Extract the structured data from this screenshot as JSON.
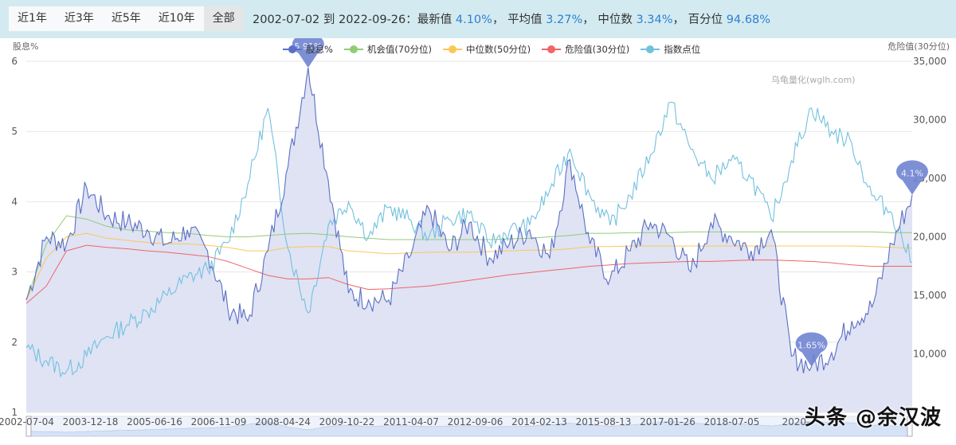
{
  "toolbar": {
    "ranges": [
      {
        "label": "近1年",
        "active": false
      },
      {
        "label": "近3年",
        "active": false
      },
      {
        "label": "近5年",
        "active": false
      },
      {
        "label": "近10年",
        "active": false
      },
      {
        "label": "全部",
        "active": true
      }
    ]
  },
  "summary": {
    "date_range": "2002-07-02 到 2022-09-26：",
    "latest_label": "最新值",
    "latest_value": "4.10%",
    "sep1": "，",
    "mean_label": "平均值",
    "mean_value": "3.27%",
    "sep2": "，",
    "median_label": "中位数",
    "median_value": "3.34%",
    "sep3": "，",
    "pct_label": "百分位",
    "pct_value": "94.68%"
  },
  "colors": {
    "accent": "#2e7fd4",
    "yield": "#5b6fc4",
    "yield_fill": "#dde1f3",
    "opportunity": "#91cc75",
    "median": "#fac858",
    "danger": "#ee6666",
    "index": "#73c0de",
    "marker": "#6f84d2"
  },
  "chart": {
    "left_axis_name": "股息%",
    "right_axis_name": "危险值(30分位)",
    "watermark": "乌龟量化(wglh.com)",
    "credit": "头条 @余汉波"
  },
  "chart_data": {
    "type": "line",
    "title": "",
    "xlabel": "",
    "ylabel": "股息%",
    "y2label": "指数点位",
    "ylim": [
      1,
      6
    ],
    "y2lim": [
      5000,
      35000
    ],
    "y_ticks": [
      1,
      2,
      3,
      4,
      5,
      6
    ],
    "y2_ticks": [
      "10,000",
      "15,000",
      "20,000",
      "25,000",
      "30,000",
      "35,000"
    ],
    "x_tick_labels": [
      "2002-07-04",
      "2003-12-18",
      "2005-06-16",
      "2006-11-09",
      "2008-04-24",
      "2009-10-22",
      "2011-04-07",
      "2012-09-06",
      "2014-02-13",
      "2015-08-13",
      "2017-01-26",
      "2018-07-05",
      "2020-"
    ],
    "grid": true,
    "legend_position": "top",
    "legend": [
      "股息%",
      "机会值(70分位)",
      "中位数(50分位)",
      "危险值(30分位)",
      "指数点位"
    ],
    "x": [
      "2002-07",
      "2003-01",
      "2003-07",
      "2004-01",
      "2004-07",
      "2005-01",
      "2005-07",
      "2006-01",
      "2006-07",
      "2007-01",
      "2007-07",
      "2008-01",
      "2008-07",
      "2008-10",
      "2009-01",
      "2009-07",
      "2010-01",
      "2010-07",
      "2011-01",
      "2011-07",
      "2012-01",
      "2012-07",
      "2013-01",
      "2013-07",
      "2014-01",
      "2014-07",
      "2015-01",
      "2015-07",
      "2016-01",
      "2016-07",
      "2017-01",
      "2017-07",
      "2018-01",
      "2018-07",
      "2019-01",
      "2019-07",
      "2020-01",
      "2020-04",
      "2020-07",
      "2021-01",
      "2021-07",
      "2022-01",
      "2022-04",
      "2022-07",
      "2022-09"
    ],
    "series": [
      {
        "name": "股息%",
        "axis": "left",
        "values": [
          2.6,
          3.5,
          3.4,
          4.2,
          3.8,
          3.7,
          3.6,
          3.4,
          3.6,
          3.3,
          2.5,
          2.3,
          3.3,
          4.5,
          5.91,
          4.3,
          2.7,
          2.6,
          2.6,
          3.2,
          3.9,
          3.3,
          3.7,
          3.2,
          3.4,
          3.6,
          3.2,
          4.6,
          3.4,
          2.9,
          3.3,
          3.7,
          3.5,
          3.0,
          3.7,
          3.5,
          3.3,
          3.6,
          1.8,
          1.65,
          1.85,
          2.3,
          2.5,
          3.4,
          4.1
        ],
        "markers": [
          {
            "label": "5.91%",
            "x": "2009-01"
          },
          {
            "label": "1.65%",
            "x": "2021-01"
          },
          {
            "label": "4.1%",
            "x": "2022-09"
          }
        ]
      },
      {
        "name": "机会值(70分位)",
        "axis": "left",
        "values": [
          2.6,
          3.4,
          3.8,
          3.75,
          3.65,
          3.6,
          3.58,
          3.56,
          3.55,
          3.52,
          3.5,
          3.5,
          3.52,
          3.54,
          3.55,
          3.53,
          3.5,
          3.48,
          3.46,
          3.46,
          3.46,
          3.46,
          3.46,
          3.46,
          3.47,
          3.48,
          3.5,
          3.52,
          3.55,
          3.55,
          3.56,
          3.56,
          3.56,
          3.57,
          3.57,
          3.57,
          3.57,
          3.57,
          3.57,
          3.57,
          3.57,
          3.57,
          3.57,
          3.56,
          3.56
        ]
      },
      {
        "name": "中位数(50分位)",
        "axis": "left",
        "values": [
          2.6,
          3.2,
          3.5,
          3.55,
          3.48,
          3.45,
          3.42,
          3.4,
          3.4,
          3.38,
          3.35,
          3.3,
          3.3,
          3.35,
          3.36,
          3.36,
          3.3,
          3.28,
          3.26,
          3.27,
          3.28,
          3.28,
          3.28,
          3.29,
          3.3,
          3.31,
          3.31,
          3.33,
          3.36,
          3.36,
          3.37,
          3.37,
          3.37,
          3.37,
          3.37,
          3.37,
          3.37,
          3.37,
          3.37,
          3.37,
          3.37,
          3.37,
          3.36,
          3.35,
          3.34
        ]
      },
      {
        "name": "危险值(30分位)",
        "axis": "left",
        "values": [
          2.55,
          2.8,
          3.3,
          3.38,
          3.35,
          3.33,
          3.3,
          3.28,
          3.25,
          3.22,
          3.15,
          3.05,
          2.95,
          2.9,
          2.9,
          2.92,
          2.82,
          2.75,
          2.76,
          2.78,
          2.8,
          2.84,
          2.88,
          2.92,
          2.96,
          2.99,
          3.02,
          3.05,
          3.08,
          3.1,
          3.12,
          3.13,
          3.14,
          3.15,
          3.15,
          3.16,
          3.17,
          3.17,
          3.16,
          3.15,
          3.13,
          3.1,
          3.08,
          3.08,
          3.08
        ]
      },
      {
        "name": "指数点位",
        "axis": "right",
        "values": [
          10500,
          9400,
          8500,
          9800,
          11500,
          12500,
          13600,
          15000,
          16500,
          17200,
          19500,
          24500,
          31000,
          19000,
          13500,
          21000,
          23000,
          20000,
          22500,
          21500,
          20000,
          21500,
          22000,
          19500,
          20500,
          21000,
          24000,
          27500,
          23500,
          21000,
          23500,
          27000,
          31500,
          27500,
          25000,
          26500,
          25000,
          21500,
          26500,
          31000,
          29000,
          28000,
          23500,
          22000,
          17800
        ]
      }
    ]
  }
}
